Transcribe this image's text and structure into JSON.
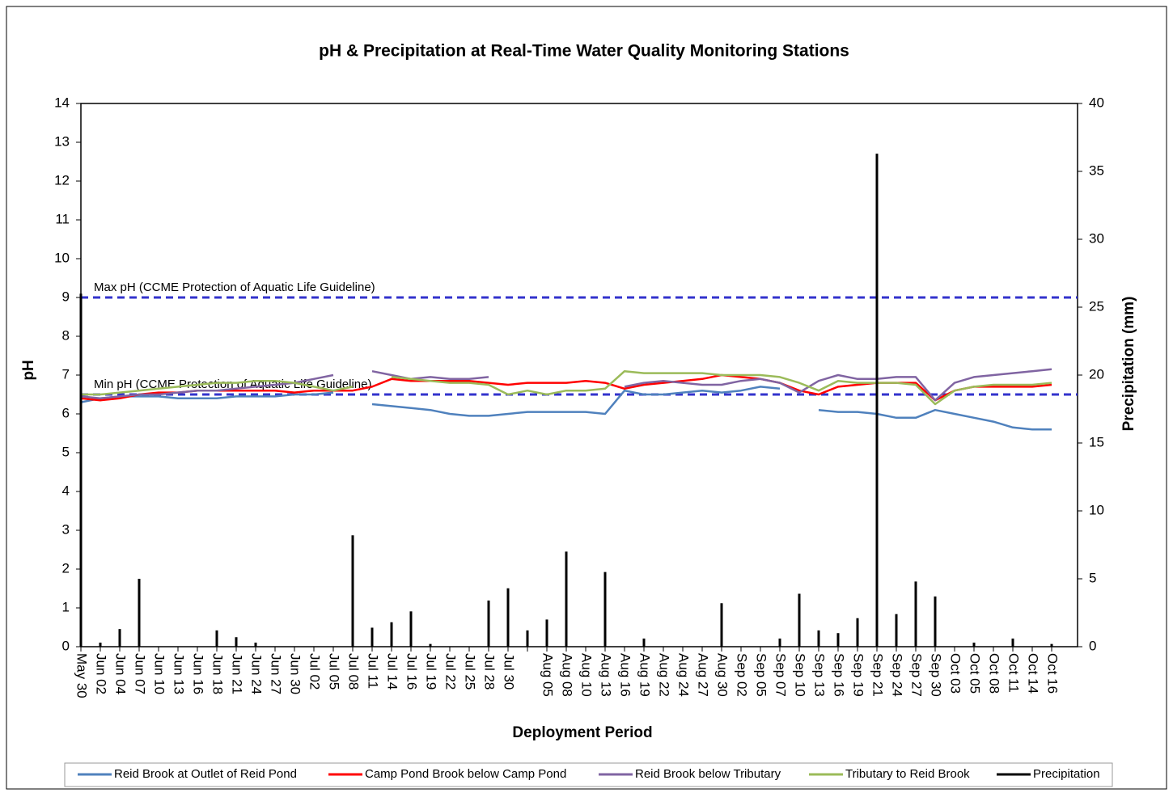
{
  "chart_data": {
    "type": "line",
    "title": "pH & Precipitation at Real-Time Water Quality Monitoring Stations",
    "x_label": "Deployment Period",
    "y_label": "pH",
    "y2_label": "Precipitation (mm)",
    "categories": [
      "May 30",
      "Jun 02",
      "Jun 04",
      "Jun 07",
      "Jun 10",
      "Jun 13",
      "Jun 16",
      "Jun 18",
      "Jun 21",
      "Jun 24",
      "Jun 27",
      "Jun 30",
      "Jul 02",
      "Jul 05",
      "Jul 08",
      "Jul 11",
      "Jul 14",
      "Jul 16",
      "Jul 19",
      "Jul 22",
      "Jul 25",
      "Jul 28",
      "Jul 30",
      null,
      "Aug 05",
      "Aug 08",
      "Aug 10",
      "Aug 13",
      "Aug 16",
      "Aug 19",
      "Aug 22",
      "Aug 24",
      "Aug 27",
      "Aug 30",
      "Sep 02",
      "Sep 05",
      "Sep 07",
      "Sep 10",
      "Sep 13",
      "Sep 16",
      "Sep 19",
      "Sep 21",
      "Sep 24",
      "Sep 27",
      "Sep 30",
      "Oct 03",
      "Oct 05",
      "Oct 08",
      "Oct 11",
      "Oct 14",
      "Oct 16"
    ],
    "ylim": [
      0,
      14
    ],
    "yticks": [
      0,
      1,
      2,
      3,
      4,
      5,
      6,
      7,
      8,
      9,
      10,
      11,
      12,
      13,
      14
    ],
    "y2lim": [
      0,
      40
    ],
    "y2ticks": [
      0,
      5,
      10,
      15,
      20,
      25,
      30,
      35,
      40
    ],
    "reference_lines": [
      {
        "label": "Max pH (CCME Protection of Aquatic Life Guideline)",
        "value": 9,
        "color": "#3333cc"
      },
      {
        "label": "Min pH (CCME Protection of Aquatic Life Guideline)",
        "value": 6.5,
        "color": "#3333cc"
      }
    ],
    "series": [
      {
        "name": "Reid Brook at Outlet of Reid Pond",
        "color": "#4f81bd",
        "values": [
          6.3,
          6.4,
          6.45,
          6.45,
          6.45,
          6.4,
          6.4,
          6.4,
          6.45,
          6.45,
          6.45,
          6.5,
          6.5,
          6.55,
          null,
          6.25,
          6.2,
          6.15,
          6.1,
          6.0,
          5.95,
          5.95,
          6.0,
          6.05,
          6.05,
          6.05,
          6.05,
          6.0,
          6.6,
          6.5,
          6.5,
          6.55,
          6.6,
          6.55,
          6.6,
          6.7,
          6.65,
          null,
          6.1,
          6.05,
          6.05,
          6.0,
          5.9,
          5.9,
          6.1,
          6.0,
          5.9,
          5.8,
          5.65,
          5.6,
          5.6
        ]
      },
      {
        "name": "Camp Pond Brook below Camp Pond",
        "color": "#ff0000",
        "values": [
          6.4,
          6.35,
          6.4,
          6.5,
          6.55,
          6.55,
          6.6,
          6.6,
          6.6,
          6.6,
          6.6,
          6.55,
          6.6,
          6.6,
          6.6,
          6.7,
          6.9,
          6.85,
          6.85,
          6.85,
          6.85,
          6.8,
          6.75,
          6.8,
          6.8,
          6.8,
          6.85,
          6.8,
          6.65,
          6.75,
          6.8,
          6.85,
          6.9,
          7.0,
          6.95,
          6.9,
          6.8,
          6.6,
          6.5,
          6.7,
          6.75,
          6.8,
          6.8,
          6.8,
          6.35,
          6.6,
          6.7,
          6.7,
          6.7,
          6.7,
          6.75
        ]
      },
      {
        "name": "Reid Brook below Tributary",
        "color": "#8064a2",
        "values": [
          6.45,
          6.4,
          6.45,
          6.5,
          6.5,
          6.55,
          6.6,
          6.6,
          6.65,
          6.7,
          6.75,
          6.8,
          6.9,
          7.0,
          null,
          7.1,
          7.0,
          6.9,
          6.95,
          6.9,
          6.9,
          6.95,
          null,
          null,
          null,
          null,
          null,
          null,
          6.7,
          6.8,
          6.85,
          6.8,
          6.75,
          6.75,
          6.85,
          6.9,
          6.8,
          6.55,
          6.85,
          7.0,
          6.9,
          6.9,
          6.95,
          6.95,
          6.35,
          6.8,
          6.95,
          7.0,
          7.05,
          7.1,
          7.15
        ]
      },
      {
        "name": "Tributary to Reid Brook",
        "color": "#9bbb59",
        "values": [
          6.5,
          6.5,
          6.55,
          6.6,
          6.65,
          6.7,
          6.75,
          6.8,
          6.8,
          6.85,
          6.85,
          6.8,
          6.7,
          6.6,
          6.7,
          null,
          6.95,
          6.9,
          6.85,
          6.8,
          6.8,
          6.75,
          6.5,
          6.6,
          6.5,
          6.6,
          6.6,
          6.65,
          7.1,
          7.05,
          7.05,
          7.05,
          7.05,
          7.0,
          7.0,
          7.0,
          6.95,
          6.8,
          6.6,
          6.85,
          6.8,
          6.8,
          6.8,
          6.75,
          6.25,
          6.6,
          6.7,
          6.75,
          6.75,
          6.75,
          6.8
        ]
      },
      {
        "name": "Precipitation",
        "color": "#000000",
        "axis": "y2",
        "values": [
          26,
          0.3,
          1.3,
          5,
          0,
          0,
          0,
          1.2,
          0.7,
          0.3,
          0,
          0,
          0,
          0,
          8.2,
          1.4,
          1.8,
          2.6,
          0.2,
          0,
          0,
          3.4,
          4.3,
          1.2,
          2,
          7,
          0,
          5.5,
          0,
          0.6,
          0,
          0,
          0,
          3.2,
          0,
          0,
          0.6,
          3.9,
          1.2,
          1.0,
          2.1,
          36.3,
          2.4,
          4.8,
          3.7,
          0,
          0.3,
          0,
          0.6,
          0,
          0.2
        ]
      }
    ]
  }
}
